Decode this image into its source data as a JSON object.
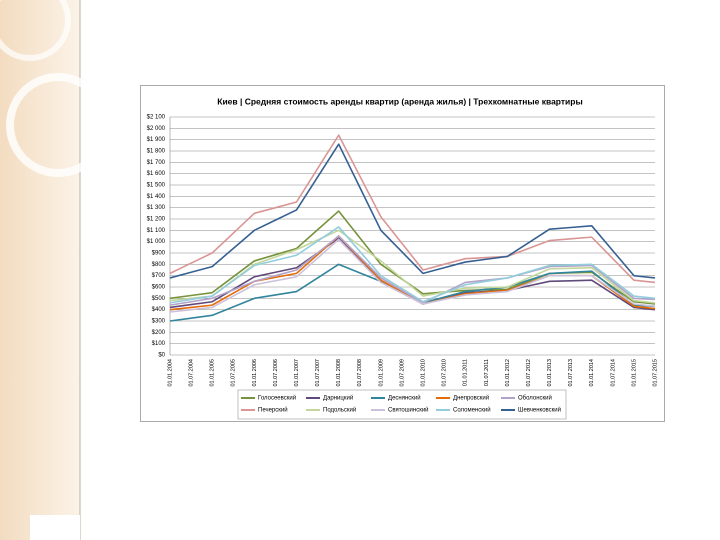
{
  "chart_data": {
    "type": "line",
    "title": "Киев | Средняя стоимость аренды квартир (аренда жилья) | Трехкомнатные квартиры",
    "categories": [
      "01.01.2004",
      "01.07.2004",
      "01.01.2005",
      "01.07.2005",
      "01.01.2006",
      "01.07.2006",
      "01.01.2007",
      "01.07.2007",
      "01.01.2008",
      "01.07.2008",
      "01.01.2009",
      "01.07.2009",
      "01.01.2010",
      "01.07.2010",
      "01.01.2011",
      "01.07.2011",
      "01.01.2012",
      "01.07.2012",
      "01.01.2013",
      "01.07.2013",
      "01.01.2014",
      "01.07.2014",
      "01.01.2015",
      "01.07.2015"
    ],
    "ylim": [
      0,
      2100
    ],
    "yticks": [
      {
        "value": 0,
        "label": "$0"
      },
      {
        "value": 100,
        "label": "$100"
      },
      {
        "value": 200,
        "label": "$200"
      },
      {
        "value": 300,
        "label": "$300"
      },
      {
        "value": 400,
        "label": "$400"
      },
      {
        "value": 500,
        "label": "$500"
      },
      {
        "value": 600,
        "label": "$600"
      },
      {
        "value": 700,
        "label": "$700"
      },
      {
        "value": 800,
        "label": "$800"
      },
      {
        "value": 900,
        "label": "$900"
      },
      {
        "value": 1000,
        "label": "$1 000"
      },
      {
        "value": 1100,
        "label": "$1 100"
      },
      {
        "value": 1200,
        "label": "$1 200"
      },
      {
        "value": 1300,
        "label": "$1 300"
      },
      {
        "value": 1400,
        "label": "$1 400"
      },
      {
        "value": 1500,
        "label": "$1 500"
      },
      {
        "value": 1600,
        "label": "$1 600"
      },
      {
        "value": 1700,
        "label": "$1 700"
      },
      {
        "value": 1800,
        "label": "$1 800"
      },
      {
        "value": 1900,
        "label": "$1 900"
      },
      {
        "value": 2000,
        "label": "$2 000"
      },
      {
        "value": 2100,
        "label": "$2 100"
      }
    ],
    "grid": true,
    "legend": "bottom",
    "series": [
      {
        "name": "Голосеевский",
        "color": "#77933c",
        "values": [
          500,
          525,
          550,
          690,
          830,
          885,
          940,
          1105,
          1270,
          1035,
          800,
          670,
          540,
          555,
          570,
          575,
          580,
          650,
          720,
          725,
          730,
          600,
          470,
          450
        ]
      },
      {
        "name": "Дарницкий",
        "color": "#604a7b",
        "values": [
          420,
          445,
          470,
          580,
          690,
          730,
          770,
          900,
          1030,
          840,
          650,
          550,
          450,
          500,
          550,
          560,
          570,
          610,
          650,
          655,
          660,
          540,
          420,
          400
        ]
      },
      {
        "name": "Деснянский",
        "color": "#31859c",
        "values": [
          300,
          325,
          350,
          425,
          500,
          530,
          560,
          680,
          800,
          725,
          650,
          555,
          460,
          510,
          560,
          580,
          600,
          660,
          720,
          730,
          740,
          590,
          440,
          430
        ]
      },
      {
        "name": "Днепровский",
        "color": "#e46c0a",
        "values": [
          400,
          420,
          440,
          545,
          650,
          685,
          720,
          885,
          1050,
          855,
          660,
          555,
          450,
          495,
          540,
          555,
          570,
          635,
          700,
          700,
          700,
          565,
          430,
          410
        ]
      },
      {
        "name": "Оболонский",
        "color": "#b3a2c7",
        "values": [
          440,
          470,
          500,
          575,
          650,
          700,
          750,
          900,
          1050,
          865,
          680,
          570,
          460,
          550,
          640,
          660,
          680,
          730,
          780,
          785,
          790,
          645,
          500,
          490
        ]
      },
      {
        "name": "Печерский",
        "color": "#d99694",
        "values": [
          720,
          810,
          900,
          1075,
          1250,
          1300,
          1350,
          1645,
          1940,
          1580,
          1220,
          985,
          750,
          800,
          850,
          860,
          870,
          940,
          1010,
          1025,
          1040,
          850,
          660,
          640
        ]
      },
      {
        "name": "Подольский",
        "color": "#c3d69b",
        "values": [
          480,
          500,
          520,
          660,
          800,
          865,
          930,
          1015,
          1100,
          965,
          830,
          675,
          520,
          555,
          590,
          595,
          600,
          680,
          760,
          765,
          770,
          625,
          480,
          460
        ]
      },
      {
        "name": "Святошинский",
        "color": "#ccc1da",
        "values": [
          380,
          400,
          420,
          520,
          620,
          655,
          690,
          855,
          1020,
          830,
          640,
          545,
          450,
          490,
          530,
          545,
          560,
          630,
          700,
          700,
          700,
          575,
          450,
          430
        ]
      },
      {
        "name": "Соломенский",
        "color": "#93cddd",
        "values": [
          460,
          490,
          520,
          655,
          790,
          835,
          880,
          1005,
          1130,
          915,
          700,
          585,
          470,
          545,
          620,
          650,
          680,
          735,
          790,
          795,
          800,
          660,
          520,
          500
        ]
      },
      {
        "name": "Шевченковский",
        "color": "#376092",
        "values": [
          680,
          730,
          780,
          940,
          1100,
          1190,
          1280,
          1570,
          1860,
          1480,
          1100,
          910,
          720,
          770,
          820,
          845,
          870,
          990,
          1110,
          1125,
          1140,
          920,
          700,
          680
        ]
      }
    ]
  }
}
